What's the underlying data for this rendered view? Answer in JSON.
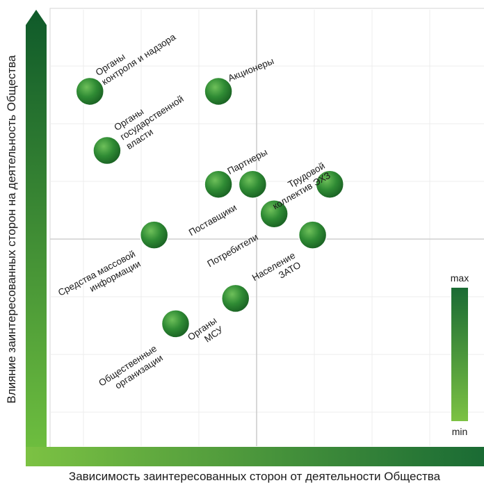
{
  "chart_data": {
    "type": "scatter",
    "xlabel": "Зависимость заинтересованных сторон от деятельности Общества",
    "ylabel": "Влияние заинтересованных сторон на деятельность Общества",
    "xlim": [
      0,
      10
    ],
    "ylim": [
      0,
      10
    ],
    "grid": true,
    "points": [
      {
        "label": [
          "Органы",
          "контроля и надзора"
        ],
        "x": 0.8,
        "y": 8.2
      },
      {
        "label": [
          "Органы",
          "государственной",
          "власти"
        ],
        "x": 1.2,
        "y": 6.8
      },
      {
        "label": [
          "Акционеры"
        ],
        "x": 3.8,
        "y": 8.2
      },
      {
        "label": [
          "Партнеры"
        ],
        "x": 3.8,
        "y": 6.0
      },
      {
        "label": [
          "Поставщики"
        ],
        "x": 4.6,
        "y": 6.0
      },
      {
        "label": [
          "Потребители"
        ],
        "x": 5.1,
        "y": 5.3
      },
      {
        "label": [
          "Трудовой",
          "коллектив ЭХЗ"
        ],
        "x": 6.4,
        "y": 6.0
      },
      {
        "label": [
          "Население",
          "ЗАТО"
        ],
        "x": 6.0,
        "y": 4.8
      },
      {
        "label": [
          "Средства массовой",
          "информации"
        ],
        "x": 2.3,
        "y": 4.8
      },
      {
        "label": [
          "Органы",
          "МСУ"
        ],
        "x": 4.2,
        "y": 3.3
      },
      {
        "label": [
          "Общественные",
          "организации"
        ],
        "x": 2.8,
        "y": 2.7
      }
    ],
    "legend": {
      "max_label": "max",
      "min_label": "min",
      "max_color": "#1a6b34",
      "min_color": "#7cc243"
    },
    "colors": {
      "bubble": "#3c9a3c",
      "axis_dark": "#0f5a2a",
      "axis_light": "#6fbf3f",
      "grid": "#dedede"
    }
  }
}
